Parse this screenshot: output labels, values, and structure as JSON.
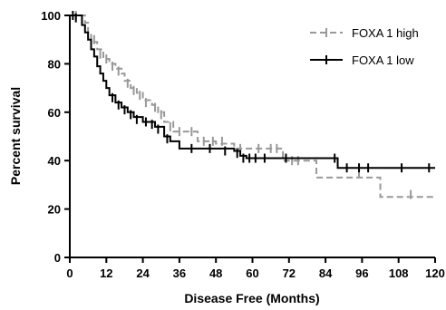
{
  "chart_data": {
    "type": "line",
    "title": "",
    "xlabel": "Disease Free (Months)",
    "ylabel": "Percent survival",
    "xlim": [
      0,
      120
    ],
    "ylim": [
      0,
      100
    ],
    "x_ticks": [
      0,
      12,
      24,
      36,
      48,
      60,
      72,
      84,
      96,
      108,
      120
    ],
    "y_ticks": [
      0,
      20,
      40,
      60,
      80,
      100
    ],
    "x_tick_labels": [
      "0",
      "12",
      "24",
      "36",
      "48",
      "60",
      "72",
      "84",
      "96",
      "108",
      "120"
    ],
    "y_tick_labels": [
      "0",
      "20",
      "40",
      "60",
      "80",
      "100"
    ],
    "grid": false,
    "legend_position": "top-right",
    "series": [
      {
        "name": "FOXA 1 high",
        "color": "#999999",
        "style": "dashed",
        "points": [
          [
            0,
            100
          ],
          [
            4,
            100
          ],
          [
            5,
            97
          ],
          [
            6,
            93
          ],
          [
            7,
            89
          ],
          [
            9,
            86
          ],
          [
            11,
            82
          ],
          [
            13,
            80
          ],
          [
            15,
            78
          ],
          [
            17,
            76
          ],
          [
            18,
            73
          ],
          [
            20,
            70
          ],
          [
            22,
            68
          ],
          [
            24,
            65
          ],
          [
            27,
            63
          ],
          [
            29,
            60
          ],
          [
            31,
            56
          ],
          [
            34,
            52
          ],
          [
            42,
            48
          ],
          [
            48,
            47
          ],
          [
            54,
            45
          ],
          [
            70,
            40
          ],
          [
            80,
            40
          ],
          [
            81,
            33
          ],
          [
            93,
            33
          ],
          [
            102,
            25
          ],
          [
            120,
            25
          ]
        ],
        "censors": [
          [
            2,
            100
          ],
          [
            8,
            90
          ],
          [
            10,
            84
          ],
          [
            12,
            82
          ],
          [
            14,
            79
          ],
          [
            16,
            77
          ],
          [
            19,
            72
          ],
          [
            21,
            69
          ],
          [
            23,
            67
          ],
          [
            25,
            64
          ],
          [
            28,
            62
          ],
          [
            30,
            59
          ],
          [
            33,
            54
          ],
          [
            36,
            52
          ],
          [
            40,
            52
          ],
          [
            44,
            48
          ],
          [
            47,
            48
          ],
          [
            50,
            48
          ],
          [
            56,
            45
          ],
          [
            62,
            45
          ],
          [
            66,
            45
          ],
          [
            68,
            45
          ],
          [
            73,
            40
          ],
          [
            75,
            40
          ],
          [
            95,
            35
          ],
          [
            112,
            26
          ]
        ]
      },
      {
        "name": "FOXA 1 low",
        "color": "#000000",
        "style": "solid",
        "points": [
          [
            0,
            100
          ],
          [
            3,
            100
          ],
          [
            4,
            96
          ],
          [
            5,
            93
          ],
          [
            6,
            90
          ],
          [
            7,
            86
          ],
          [
            8,
            83
          ],
          [
            9,
            79
          ],
          [
            10,
            76
          ],
          [
            11,
            73
          ],
          [
            12,
            70
          ],
          [
            13,
            67
          ],
          [
            15,
            64
          ],
          [
            17,
            62
          ],
          [
            19,
            60
          ],
          [
            21,
            58
          ],
          [
            24,
            56
          ],
          [
            28,
            54
          ],
          [
            31,
            50
          ],
          [
            33,
            48
          ],
          [
            36,
            45
          ],
          [
            54,
            44
          ],
          [
            56,
            42
          ],
          [
            58,
            41
          ],
          [
            87,
            41
          ],
          [
            88,
            37
          ],
          [
            120,
            37
          ]
        ],
        "censors": [
          [
            1,
            100
          ],
          [
            2,
            99
          ],
          [
            14,
            66
          ],
          [
            16,
            63
          ],
          [
            18,
            61
          ],
          [
            20,
            59
          ],
          [
            22,
            57
          ],
          [
            25,
            56
          ],
          [
            27,
            55
          ],
          [
            29,
            53
          ],
          [
            32,
            49
          ],
          [
            40,
            45
          ],
          [
            46,
            45
          ],
          [
            51,
            44
          ],
          [
            55,
            43
          ],
          [
            57,
            41
          ],
          [
            59,
            41
          ],
          [
            61,
            41
          ],
          [
            64,
            41
          ],
          [
            71,
            41
          ],
          [
            87,
            41
          ],
          [
            91,
            37
          ],
          [
            95,
            37
          ],
          [
            98,
            37
          ],
          [
            109,
            37
          ],
          [
            118,
            37
          ]
        ]
      }
    ]
  }
}
